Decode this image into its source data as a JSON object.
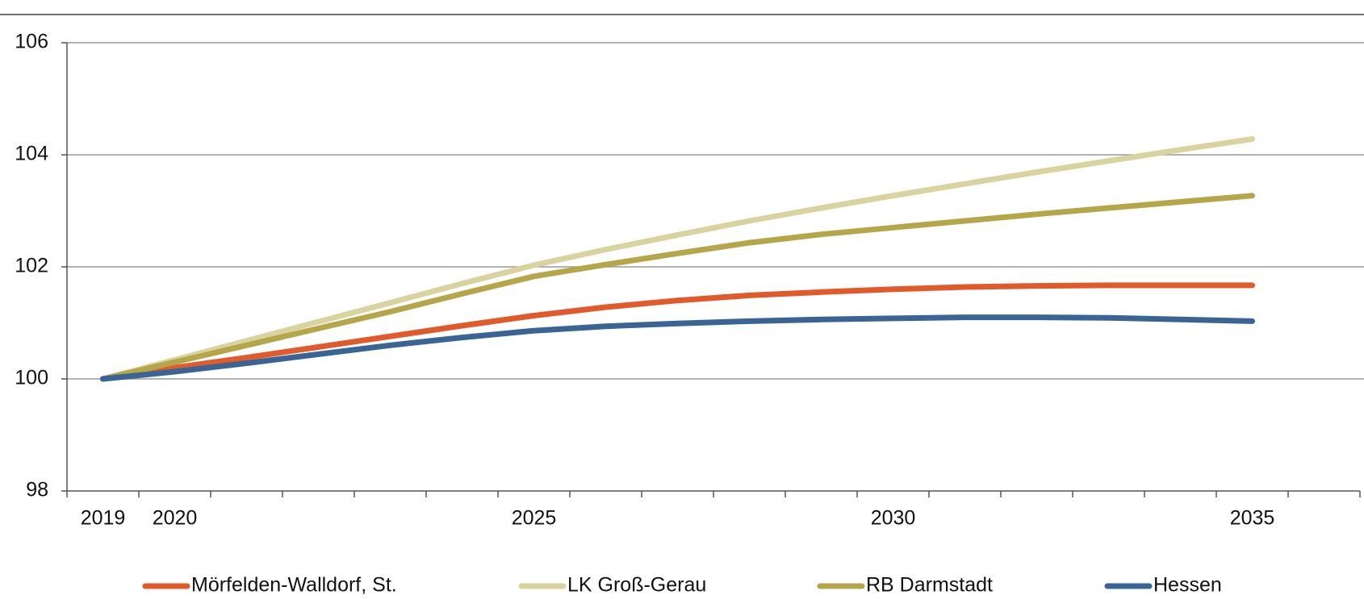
{
  "chart_data": {
    "type": "line",
    "categories": [
      "2019",
      "2020",
      null,
      null,
      null,
      null,
      "2025",
      null,
      null,
      null,
      null,
      "2030",
      null,
      null,
      null,
      null,
      "2035",
      null
    ],
    "series": [
      {
        "name": "Mörfelden-Walldorf, St.",
        "color": "#e05a2b",
        "values": [
          100,
          100.2,
          100.38,
          100.57,
          100.76,
          100.95,
          101.13,
          101.28,
          101.4,
          101.49,
          101.55,
          101.6,
          101.64,
          101.66,
          101.67,
          101.67,
          101.67,
          null
        ]
      },
      {
        "name": "LK Groß-Gerau",
        "color": "#d9d3a0",
        "values": [
          100,
          100.34,
          100.68,
          101.02,
          101.36,
          101.7,
          102.03,
          102.31,
          102.57,
          102.82,
          103.05,
          103.27,
          103.48,
          103.69,
          103.89,
          104.09,
          104.28,
          null
        ]
      },
      {
        "name": "RB Darmstadt",
        "color": "#b5a64a",
        "values": [
          100,
          100.3,
          100.6,
          100.9,
          101.2,
          101.52,
          101.83,
          102.04,
          102.24,
          102.43,
          102.58,
          102.7,
          102.82,
          102.94,
          103.05,
          103.16,
          103.27,
          null
        ]
      },
      {
        "name": "Hessen",
        "color": "#3a6494",
        "values": [
          100,
          100.13,
          100.28,
          100.44,
          100.6,
          100.74,
          100.86,
          100.94,
          100.99,
          101.03,
          101.06,
          101.08,
          101.1,
          101.1,
          101.09,
          101.06,
          101.03,
          null
        ]
      }
    ],
    "ylim": [
      98,
      106
    ],
    "yticks": [
      98,
      100,
      102,
      104,
      106
    ],
    "grid": true
  }
}
